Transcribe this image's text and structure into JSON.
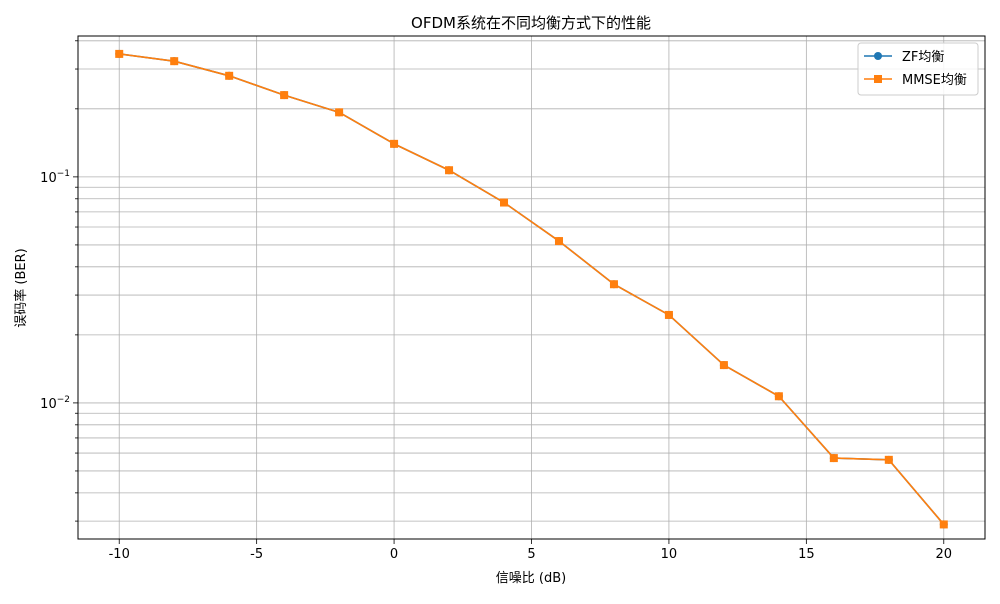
{
  "chart_data": {
    "type": "line",
    "title": "OFDM系统在不同均衡方式下的性能",
    "xlabel": "信噪比 (dB)",
    "ylabel": "误码率 (BER)",
    "x_scale": "linear",
    "y_scale": "log",
    "xlim": [
      -11.5,
      21.5
    ],
    "ylim": [
      0.0025,
      0.42
    ],
    "x_ticks": [
      {
        "value": -10,
        "label": "-10"
      },
      {
        "value": -5,
        "label": "-5"
      },
      {
        "value": 0,
        "label": "0"
      },
      {
        "value": 5,
        "label": "5"
      },
      {
        "value": 10,
        "label": "10"
      },
      {
        "value": 15,
        "label": "15"
      },
      {
        "value": 20,
        "label": "20"
      }
    ],
    "y_ticks": [
      {
        "value": 0.1,
        "label": "10",
        "exponent": "−1"
      },
      {
        "value": 0.01,
        "label": "10",
        "exponent": "−2"
      }
    ],
    "grid": true,
    "legend_position": "top-right",
    "x": [
      -10,
      -8,
      -6,
      -4,
      -2,
      0,
      2,
      4,
      6,
      8,
      10,
      12,
      14,
      16,
      18,
      20
    ],
    "series": [
      {
        "name": "ZF均衡",
        "color": "#1f77b4",
        "marker": "circle",
        "values": [
          0.35,
          0.325,
          0.28,
          0.23,
          0.193,
          0.14,
          0.107,
          0.077,
          0.052,
          0.0335,
          0.0245,
          0.0147,
          0.0107,
          0.0057,
          0.0056,
          0.0029
        ]
      },
      {
        "name": "MMSE均衡",
        "color": "#ff7f0e",
        "marker": "square",
        "values": [
          0.35,
          0.325,
          0.28,
          0.23,
          0.193,
          0.14,
          0.107,
          0.077,
          0.052,
          0.0335,
          0.0245,
          0.0147,
          0.0107,
          0.0057,
          0.0056,
          0.0029
        ]
      }
    ]
  }
}
